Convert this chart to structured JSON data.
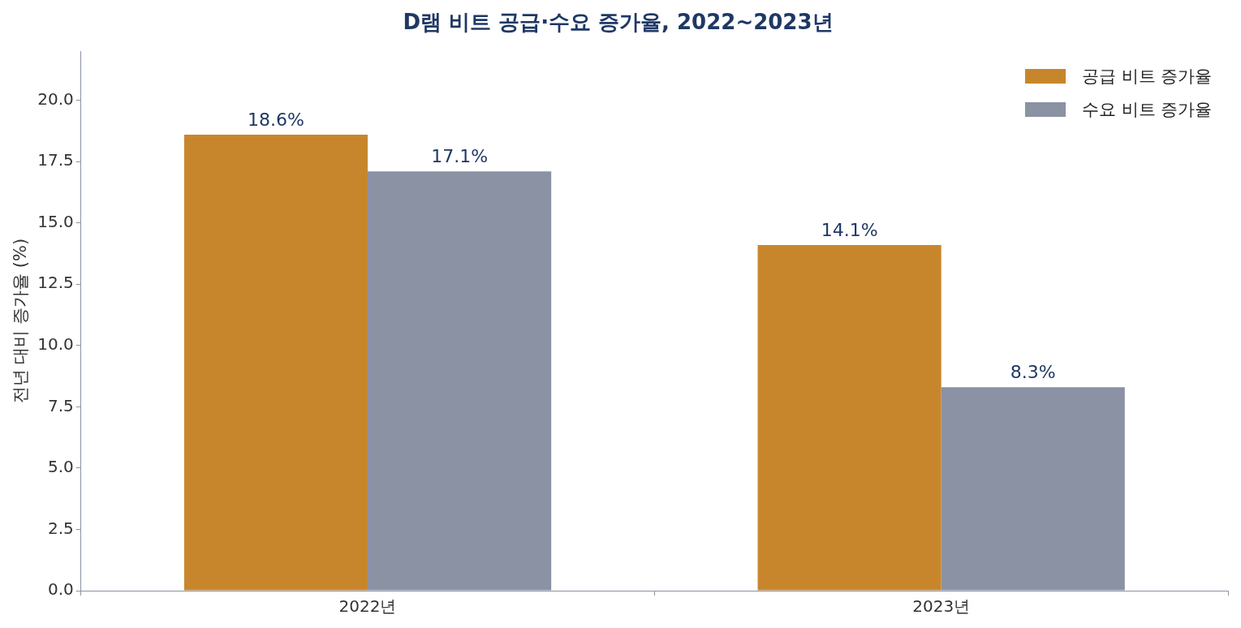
{
  "chart_data": {
    "type": "bar",
    "title": "D램 비트 공급·수요 증가율, 2022~2023년",
    "ylabel": "전년 대비 증가율 (%)",
    "categories": [
      "2022년",
      "2023년"
    ],
    "series": [
      {
        "name": "공급 비트 증가율",
        "color": "#c8862c",
        "values": [
          18.6,
          14.1
        ],
        "value_labels": [
          "18.6%",
          "14.1%"
        ]
      },
      {
        "name": "수요 비트 증가율",
        "color": "#8a92a4",
        "values": [
          17.1,
          8.3
        ],
        "value_labels": [
          "17.1%",
          "8.3%"
        ]
      }
    ],
    "ylim": [
      0,
      22
    ],
    "yticks": [
      {
        "value": 0,
        "label": "0.0"
      },
      {
        "value": 2.5,
        "label": "2.5"
      },
      {
        "value": 5,
        "label": "5.0"
      },
      {
        "value": 7.5,
        "label": "7.5"
      },
      {
        "value": 10,
        "label": "10.0"
      },
      {
        "value": 12.5,
        "label": "12.5"
      },
      {
        "value": 15,
        "label": "15.0"
      },
      {
        "value": 17.5,
        "label": "17.5"
      },
      {
        "value": 20,
        "label": "20.0"
      }
    ],
    "grid": false,
    "legend": "top right"
  }
}
